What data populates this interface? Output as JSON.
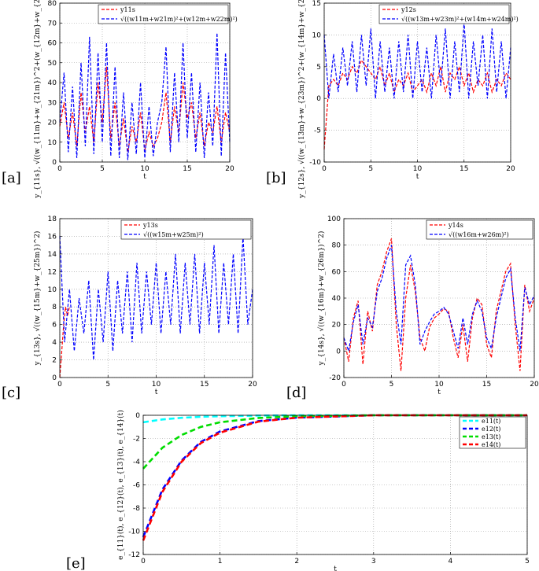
{
  "panels": [
    "[a]",
    "[b]",
    "[c]",
    "[d]",
    "[e]"
  ],
  "chart_data": [
    {
      "type": "line",
      "panel": "[a]",
      "xlabel": "t",
      "ylabel": "y_{11s}, √((w_{11m}+w_{21m})^2+(w_{12m}+w_{22m})^2)",
      "xlim": [
        0,
        20
      ],
      "ylim": [
        0,
        80
      ],
      "xticks": [
        0,
        5,
        10,
        15,
        20
      ],
      "yticks": [
        0,
        10,
        20,
        30,
        40,
        50,
        60,
        70,
        80
      ],
      "grid": true,
      "legend": "top-right",
      "series": [
        {
          "name": "y11s",
          "color": "#ff0000",
          "x": [
            0,
            0.5,
            1,
            1.5,
            2,
            2.5,
            3,
            3.5,
            4,
            4.5,
            5,
            5.5,
            6,
            6.5,
            7,
            7.5,
            8,
            8.5,
            9,
            9.5,
            10,
            10.5,
            11,
            11.5,
            12,
            12.5,
            13,
            13.5,
            14,
            14.5,
            15,
            15.5,
            16,
            16.5,
            17,
            17.5,
            18,
            18.5,
            19,
            19.5,
            20
          ],
          "values": [
            18,
            30,
            12,
            25,
            8,
            35,
            15,
            28,
            10,
            40,
            20,
            48,
            12,
            30,
            8,
            22,
            5,
            18,
            10,
            25,
            6,
            15,
            8,
            12,
            20,
            35,
            10,
            28,
            15,
            40,
            22,
            30,
            12,
            25,
            8,
            20,
            15,
            28,
            10,
            25,
            15
          ]
        },
        {
          "name": "√((w11m+w21m)²+(w12m+w22m)²)",
          "color": "#0000ff",
          "x": [
            0,
            0.5,
            1,
            1.5,
            2,
            2.5,
            3,
            3.5,
            4,
            4.5,
            5,
            5.5,
            6,
            6.5,
            7,
            7.5,
            8,
            8.5,
            9,
            9.5,
            10,
            10.5,
            11,
            11.5,
            12,
            12.5,
            13,
            13.5,
            14,
            14.5,
            15,
            15.5,
            16,
            16.5,
            17,
            17.5,
            18,
            18.5,
            19,
            19.5,
            20
          ],
          "values": [
            20,
            45,
            5,
            38,
            2,
            50,
            8,
            63,
            4,
            55,
            10,
            60,
            3,
            48,
            2,
            35,
            1,
            30,
            4,
            40,
            2,
            28,
            3,
            20,
            30,
            58,
            5,
            45,
            10,
            60,
            12,
            45,
            5,
            40,
            2,
            35,
            8,
            65,
            3,
            55,
            10
          ]
        }
      ]
    },
    {
      "type": "line",
      "panel": "[b]",
      "xlabel": "t",
      "ylabel": "y_{12s}, √((w_{13m}+w_{23m})^2+(w_{14m}+w_{24m})^2)",
      "xlim": [
        0,
        20
      ],
      "ylim": [
        -10,
        15
      ],
      "xticks": [
        0,
        5,
        10,
        15,
        20
      ],
      "yticks": [
        -10,
        -5,
        0,
        5,
        10,
        15
      ],
      "grid": true,
      "legend": "top-right",
      "series": [
        {
          "name": "y12s",
          "color": "#ff0000",
          "x": [
            0,
            0.5,
            1,
            1.5,
            2,
            2.5,
            3,
            3.5,
            4,
            4.5,
            5,
            5.5,
            6,
            6.5,
            7,
            7.5,
            8,
            8.5,
            9,
            9.5,
            10,
            10.5,
            11,
            11.5,
            12,
            12.5,
            13,
            13.5,
            14,
            14.5,
            15,
            15.5,
            16,
            16.5,
            17,
            17.5,
            18,
            18.5,
            19,
            19.5,
            20
          ],
          "values": [
            -8,
            2,
            3,
            2,
            4,
            3,
            5,
            4,
            6,
            5,
            4,
            3,
            5,
            2,
            4,
            1,
            3,
            2,
            4,
            1,
            2,
            3,
            1,
            4,
            2,
            5,
            1,
            4,
            3,
            5,
            2,
            4,
            1,
            3,
            2,
            4,
            1,
            3,
            2,
            4,
            3
          ]
        },
        {
          "name": "√((w13m+w23m)²+(w14m+w24m)²)",
          "color": "#0000ff",
          "x": [
            0,
            0.5,
            1,
            1.5,
            2,
            2.5,
            3,
            3.5,
            4,
            4.5,
            5,
            5.5,
            6,
            6.5,
            7,
            7.5,
            8,
            8.5,
            9,
            9.5,
            10,
            10.5,
            11,
            11.5,
            12,
            12.5,
            13,
            13.5,
            14,
            14.5,
            15,
            15.5,
            16,
            16.5,
            17,
            17.5,
            18,
            18.5,
            19,
            19.5,
            20
          ],
          "values": [
            10,
            0,
            7,
            1,
            8,
            2,
            9,
            1,
            10,
            2,
            11,
            0,
            9,
            1,
            8,
            0,
            9,
            1,
            10,
            0,
            9,
            1,
            8,
            0,
            10,
            2,
            11,
            0,
            9,
            1,
            12,
            0,
            9,
            2,
            10,
            0,
            11,
            1,
            9,
            0,
            8
          ]
        }
      ]
    },
    {
      "type": "line",
      "panel": "[c]",
      "xlabel": "t",
      "ylabel": "y_{13s}, √((w_{15m}+w_{25m})^2)",
      "xlim": [
        0,
        20
      ],
      "ylim": [
        0,
        18
      ],
      "xticks": [
        0,
        5,
        10,
        15,
        20
      ],
      "yticks": [
        0,
        2,
        4,
        6,
        8,
        10,
        12,
        14,
        16,
        18
      ],
      "grid": true,
      "legend": "top-right",
      "series": [
        {
          "name": "y13s",
          "color": "#ff0000",
          "x": [
            0,
            0.2,
            0.4,
            0.6,
            0.8,
            1
          ],
          "values": [
            0,
            3,
            6,
            8,
            7,
            8
          ]
        },
        {
          "name": "√((w15m+w25m)²)",
          "color": "#0000ff",
          "x": [
            0,
            0.5,
            1,
            1.5,
            2,
            2.5,
            3,
            3.5,
            4,
            4.5,
            5,
            5.5,
            6,
            6.5,
            7,
            7.5,
            8,
            8.5,
            9,
            9.5,
            10,
            10.5,
            11,
            11.5,
            12,
            12.5,
            13,
            13.5,
            14,
            14.5,
            15,
            15.5,
            16,
            16.5,
            17,
            17.5,
            18,
            18.5,
            19,
            19.5,
            20
          ],
          "values": [
            16,
            4,
            10,
            3,
            9,
            5,
            11,
            2,
            10,
            4,
            12,
            3,
            11,
            5,
            12,
            4,
            13,
            5,
            12,
            6,
            13,
            5,
            12,
            6,
            14,
            5,
            13,
            6,
            14,
            5,
            13,
            6,
            15,
            5,
            13,
            6,
            14,
            5,
            16,
            6,
            10
          ]
        }
      ]
    },
    {
      "type": "line",
      "panel": "[d]",
      "xlabel": "t",
      "ylabel": "y_{14s}, √((w_{16m}+w_{26m})^2)",
      "xlim": [
        0,
        20
      ],
      "ylim": [
        -20,
        100
      ],
      "xticks": [
        0,
        5,
        10,
        15,
        20
      ],
      "yticks": [
        -20,
        0,
        20,
        40,
        60,
        80,
        100
      ],
      "grid": true,
      "legend": "top-right",
      "series": [
        {
          "name": "y14s",
          "color": "#ff0000",
          "x": [
            0,
            0.5,
            1,
            1.5,
            2,
            2.5,
            3,
            3.5,
            4,
            4.5,
            5,
            5.5,
            6,
            6.5,
            7,
            7.5,
            8,
            8.5,
            9,
            9.5,
            10,
            10.5,
            11,
            11.5,
            12,
            12.5,
            13,
            13.5,
            14,
            14.5,
            15,
            15.5,
            16,
            16.5,
            17,
            17.5,
            18,
            18.5,
            19,
            19.5,
            20
          ],
          "values": [
            10,
            -8,
            25,
            38,
            -10,
            30,
            15,
            50,
            60,
            75,
            85,
            20,
            -15,
            40,
            65,
            45,
            10,
            0,
            18,
            25,
            28,
            32,
            30,
            10,
            -5,
            20,
            -8,
            25,
            40,
            35,
            5,
            -5,
            30,
            45,
            60,
            66,
            20,
            -15,
            50,
            30,
            40
          ]
        },
        {
          "name": "√((w16m+w26m)²)",
          "color": "#0000ff",
          "x": [
            0,
            0.5,
            1,
            1.5,
            2,
            2.5,
            3,
            3.5,
            4,
            4.5,
            5,
            5.5,
            6,
            6.5,
            7,
            7.5,
            8,
            8.5,
            9,
            9.5,
            10,
            10.5,
            11,
            11.5,
            12,
            12.5,
            13,
            13.5,
            14,
            14.5,
            15,
            15.5,
            16,
            16.5,
            17,
            17.5,
            18,
            18.5,
            19,
            19.5,
            20
          ],
          "values": [
            10,
            0,
            22,
            35,
            5,
            25,
            18,
            45,
            55,
            70,
            80,
            30,
            5,
            65,
            72,
            50,
            5,
            15,
            22,
            28,
            30,
            33,
            28,
            15,
            2,
            25,
            5,
            28,
            38,
            30,
            10,
            2,
            25,
            40,
            55,
            62,
            25,
            0,
            48,
            35,
            42
          ]
        }
      ]
    },
    {
      "type": "line",
      "panel": "[e]",
      "xlabel": "t",
      "ylabel": "e_{11}(t), e_{12}(t), e_{13}(t), e_{14}(t)",
      "xlim": [
        0,
        5
      ],
      "ylim": [
        -12,
        0
      ],
      "xticks": [
        0,
        1,
        2,
        3,
        4,
        5
      ],
      "yticks": [
        -12,
        -10,
        -8,
        -6,
        -4,
        -2,
        0
      ],
      "grid": true,
      "legend": "top-right",
      "series": [
        {
          "name": "e11(t)",
          "color": "#00ffff",
          "x": [
            0,
            0.25,
            0.5,
            0.75,
            1,
            1.5,
            2,
            3,
            4,
            5
          ],
          "values": [
            -0.6,
            -0.36,
            -0.22,
            -0.13,
            -0.08,
            -0.03,
            -0.01,
            0,
            0,
            0
          ]
        },
        {
          "name": "e12(t)",
          "color": "#0000ff",
          "x": [
            0,
            0.25,
            0.5,
            0.75,
            1,
            1.5,
            2,
            3,
            4,
            5
          ],
          "values": [
            -10.5,
            -6.4,
            -3.9,
            -2.3,
            -1.4,
            -0.5,
            -0.2,
            0,
            0,
            0
          ]
        },
        {
          "name": "e13(t)",
          "color": "#00dd00",
          "x": [
            0,
            0.25,
            0.5,
            0.75,
            1,
            1.5,
            2,
            3,
            4,
            5
          ],
          "values": [
            -4.6,
            -2.8,
            -1.7,
            -1.0,
            -0.6,
            -0.23,
            -0.08,
            0,
            0,
            0
          ]
        },
        {
          "name": "e14(t)",
          "color": "#ff0000",
          "x": [
            0,
            0.25,
            0.5,
            0.75,
            1,
            1.5,
            2,
            3,
            4,
            5
          ],
          "values": [
            -10.8,
            -6.6,
            -4.0,
            -2.4,
            -1.5,
            -0.55,
            -0.2,
            0,
            0,
            0
          ]
        }
      ]
    }
  ]
}
